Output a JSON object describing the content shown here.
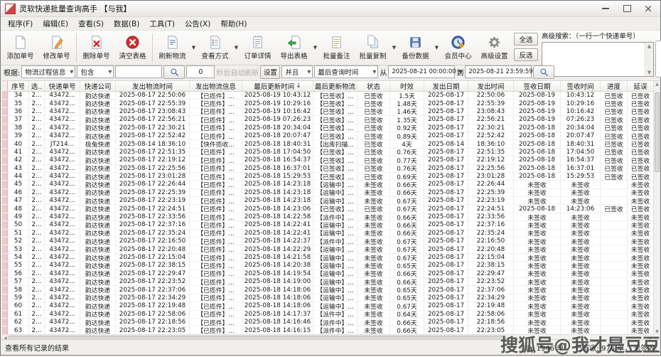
{
  "window": {
    "title": "灵软快递批量查询高手 【与我】"
  },
  "menu": {
    "items": [
      "程序(F)",
      "编辑(E)",
      "查看(S)",
      "数据(B)",
      "工具(T)",
      "公告(X)",
      "帮助(H)"
    ]
  },
  "toolbar": {
    "buttons": [
      {
        "label": "添加单号",
        "icon": "add-document-icon"
      },
      {
        "label": "修改单号",
        "icon": "edit-pencil-icon"
      },
      {
        "label": "删除单号",
        "icon": "delete-document-icon"
      },
      {
        "label": "清空表格",
        "icon": "clear-table-icon"
      },
      {
        "label": "刷新物流",
        "icon": "refresh-logistics-icon",
        "dropdown": true
      },
      {
        "label": "查看方式",
        "icon": "view-mode-icon",
        "dropdown": true
      },
      {
        "label": "订单详情",
        "icon": "order-details-icon"
      },
      {
        "label": "导出表格",
        "icon": "export-table-icon",
        "dropdown": true
      },
      {
        "label": "批量备注",
        "icon": "batch-remark-icon"
      },
      {
        "label": "批量复制",
        "icon": "batch-copy-icon",
        "dropdown": true
      },
      {
        "label": "备份数据",
        "icon": "backup-data-icon",
        "dropdown": true
      },
      {
        "label": "会员中心",
        "icon": "member-center-icon"
      },
      {
        "label": "高级设置",
        "icon": "advanced-settings-icon"
      }
    ]
  },
  "selection": {
    "select_all": "全选",
    "invert": "反选"
  },
  "advanced_search": {
    "label": "高级搜索：（一行一个快递单号）",
    "value": ""
  },
  "filter": {
    "prefix_label": "根据:",
    "field_select": "物流过程信息",
    "op_select": "包含",
    "keyword_value": "",
    "auto_refresh_value": "0",
    "auto_refresh_label": "秒后自动刷新",
    "settings_button": "设置",
    "logic_select": "并且",
    "time_field_select": "最后查询时间",
    "from_label": "从",
    "from_value": "2025-08-21 00:00:00",
    "to_label": "到",
    "to_value": "2025-08-21 23:59:59"
  },
  "table": {
    "columns": [
      "序号",
      "选..",
      "快递单号",
      "快递公司",
      "发出物流时间",
      "发出物流信息",
      "最后更新时间",
      "最后更新物流",
      "状态",
      "时效",
      "发出日期",
      "发出时间",
      "签收日期",
      "签收时间",
      "进度",
      "延误"
    ],
    "sort": {
      "column_index": 6,
      "indicator": "↓"
    },
    "rows": [
      [
        "34",
        "2...",
        "43472...",
        "韵达快递",
        "2025-08-17 22:50:06",
        "【已揽件】...",
        "2025-08-19 10:43:12",
        "【已签收】...",
        "已签收",
        "1.5天",
        "2025-08-17",
        "22:50:06",
        "2025-08-19",
        "10:43:12",
        "已签收",
        "已签收"
      ],
      [
        "35",
        "2...",
        "43472...",
        "韵达快递",
        "2025-08-17 22:55:39",
        "【已揽件】...",
        "2025-08-19 10:29:16",
        "【已签收】...",
        "已签收",
        "1.48天",
        "2025-08-17",
        "22:55:39",
        "2025-08-19",
        "10:29:16",
        "已签收",
        "已签收"
      ],
      [
        "36",
        "2...",
        "43472...",
        "韵达快递",
        "2025-08-17 23:08:43",
        "【已揽件】...",
        "2025-08-19 10:16:42",
        "【已签收】...",
        "已签收",
        "1.46天",
        "2025-08-17",
        "23:08:43",
        "2025-08-19",
        "10:16:42",
        "已签收",
        "已签收"
      ],
      [
        "37",
        "2...",
        "43472...",
        "韵达快递",
        "2025-08-17 22:56:21",
        "【已揽件】...",
        "2025-08-19 07:26:23",
        "【已签收】...",
        "已签收",
        "1.35天",
        "2025-08-17",
        "22:56:21",
        "2025-08-19",
        "07:26:23",
        "已签收",
        "已签收"
      ],
      [
        "38",
        "2...",
        "43472...",
        "韵达快递",
        "2025-08-17 22:30:21",
        "【已揽件】...",
        "2025-08-18 20:34:04",
        "【已签收】...",
        "已签收",
        "0.92天",
        "2025-08-17",
        "22:30:21",
        "2025-08-18",
        "20:34:04",
        "已签收",
        "已签收"
      ],
      [
        "39",
        "2...",
        "43472...",
        "韵达快递",
        "2025-08-17 22:52:42",
        "【已揽件】...",
        "2025-08-18 20:07:47",
        "【已签收】...",
        "已签收",
        "0.89天",
        "2025-08-17",
        "22:52:42",
        "2025-08-18",
        "20:07:47",
        "已签收",
        "已签收"
      ],
      [
        "40",
        "2...",
        "JT214...",
        "极兔快递",
        "2025-08-14 18:36:10",
        "【快件揽收...",
        "2025-08-18 18:40:31",
        "【出库扫描...",
        "已签收",
        "4天",
        "2025-08-14",
        "18:36:10",
        "2025-08-18",
        "18:40:31",
        "已签收",
        "已签收"
      ],
      [
        "41",
        "2...",
        "43472...",
        "韵达快递",
        "2025-08-17 22:51:35",
        "【已揽件】...",
        "2025-08-18 17:04:50",
        "【已签收】...",
        "已签收",
        "0.76天",
        "2025-08-17",
        "22:51:35",
        "2025-08-18",
        "17:04:50",
        "已签收",
        "已签收"
      ],
      [
        "42",
        "2...",
        "43472...",
        "韵达快递",
        "2025-08-17 22:19:12",
        "【已揽件】...",
        "2025-08-18 16:54:37",
        "【已签收】...",
        "已签收",
        "0.77天",
        "2025-08-17",
        "22:19:12",
        "2025-08-18",
        "16:54:37",
        "已签收",
        "已签收"
      ],
      [
        "43",
        "2...",
        "43472...",
        "韵达快递",
        "2025-08-17 22:25:56",
        "【已揽件】...",
        "2025-08-18 16:37:01",
        "【已签收】...",
        "已签收",
        "0.76天",
        "2025-08-17",
        "22:25:56",
        "2025-08-18",
        "16:37:01",
        "已签收",
        "已签收"
      ],
      [
        "44",
        "2...",
        "43472...",
        "韵达快递",
        "2025-08-17 23:01:28",
        "【已揽件】...",
        "2025-08-18 15:29:53",
        "【已签收】...",
        "已签收",
        "0.69天",
        "2025-08-17",
        "23:01:28",
        "2025-08-18",
        "15:29:53",
        "已签收",
        "已签收"
      ],
      [
        "45",
        "2...",
        "43472...",
        "韵达快递",
        "2025-08-17 22:26:44",
        "【已揽件】...",
        "2025-08-18 14:23:18",
        "【运输中】...",
        "未签收",
        "0.66天",
        "2025-08-17",
        "22:26:44",
        "未签收",
        "未签收",
        "",
        "未签收"
      ],
      [
        "46",
        "2...",
        "43472...",
        "韵达快递",
        "2025-08-17 22:25:39",
        "【已揽件】...",
        "2025-08-18 14:23:18",
        "【运输中】...",
        "未签收",
        "0.66天",
        "2025-08-17",
        "22:25:39",
        "未签收",
        "未签收",
        "",
        "未签收"
      ],
      [
        "47",
        "2...",
        "43472...",
        "韵达快递",
        "2025-08-17 22:23:19",
        "【已揽件】...",
        "2025-08-18 14:23:18",
        "【运输中】...",
        "未签收",
        "0.67天",
        "2025-08-17",
        "22:23:19",
        "未签收",
        "未签收",
        "",
        "未签收"
      ],
      [
        "48",
        "2...",
        "43472...",
        "韵达快递",
        "2025-08-17 22:24:51",
        "【已揽件】...",
        "2025-08-18 14:23:06",
        "【已签收】...",
        "已签收",
        "0.67天",
        "2025-08-17",
        "22:24:51",
        "2025-08-18",
        "14:23:06",
        "已签收",
        "已签收"
      ],
      [
        "49",
        "2...",
        "43472...",
        "韵达快递",
        "2025-08-17 22:33:56",
        "【已揽件】...",
        "2025-08-18 14:22:58",
        "【派件中】...",
        "未签收",
        "0.66天",
        "2025-08-17",
        "22:33:56",
        "未签收",
        "未签收",
        "",
        "未签收"
      ],
      [
        "50",
        "2...",
        "43472...",
        "韵达快递",
        "2025-08-17 22:37:16",
        "【已揽件】...",
        "2025-08-18 14:22:41",
        "【运输中】...",
        "未签收",
        "0.66天",
        "2025-08-17",
        "22:37:16",
        "未签收",
        "未签收",
        "",
        "未签收"
      ],
      [
        "51",
        "2...",
        "43472...",
        "韵达快递",
        "2025-08-17 22:35:24",
        "【已揽件】...",
        "2025-08-18 14:22:41",
        "【运输中】...",
        "未签收",
        "0.66天",
        "2025-08-17",
        "22:35:24",
        "未签收",
        "未签收",
        "",
        "未签收"
      ],
      [
        "52",
        "2...",
        "43472...",
        "韵达快递",
        "2025-08-17 22:16:50",
        "【已揽件】...",
        "2025-08-18 14:22:37",
        "【派件中】...",
        "未签收",
        "0.67天",
        "2025-08-17",
        "22:16:50",
        "未签收",
        "未签收",
        "",
        "未签收"
      ],
      [
        "53",
        "2...",
        "43472...",
        "韵达快递",
        "2025-08-17 22:20:48",
        "【已揽件】...",
        "2025-08-18 14:22:29",
        "【运输中】...",
        "未签收",
        "0.67天",
        "2025-08-17",
        "22:20:48",
        "未签收",
        "未签收",
        "",
        "未签收"
      ],
      [
        "54",
        "2...",
        "43472...",
        "韵达快递",
        "2025-08-17 22:15:04",
        "【已揽件】...",
        "2025-08-18 14:21:58",
        "【运输中】...",
        "未签收",
        "0.67天",
        "2025-08-17",
        "22:15:04",
        "未签收",
        "未签收",
        "",
        "未签收"
      ],
      [
        "55",
        "2...",
        "43472...",
        "韵达快递",
        "2025-08-17 22:38:15",
        "【已揽件】...",
        "2025-08-18 14:20:38",
        "【运输中】...",
        "未签收",
        "0.65天",
        "2025-08-17",
        "22:38:15",
        "未签收",
        "未签收",
        "",
        "未签收"
      ],
      [
        "56",
        "2...",
        "43472...",
        "韵达快递",
        "2025-08-17 22:29:47",
        "【已揽件】...",
        "2025-08-18 14:19:54",
        "【运输中】...",
        "未签收",
        "0.66天",
        "2025-08-17",
        "22:29:47",
        "未签收",
        "未签收",
        "",
        "未签收"
      ],
      [
        "57",
        "2...",
        "43472...",
        "韵达快递",
        "2025-08-17 22:23:52",
        "【已揽件】...",
        "2025-08-18 14:19:00",
        "【运输中】...",
        "未签收",
        "0.66天",
        "2025-08-17",
        "22:23:52",
        "未签收",
        "未签收",
        "",
        "未签收"
      ],
      [
        "58",
        "2...",
        "43472...",
        "韵达快递",
        "2025-08-17 22:37:06",
        "【已揽件】...",
        "2025-08-18 14:18:06",
        "【运输中】...",
        "未签收",
        "0.65天",
        "2025-08-17",
        "22:37:06",
        "未签收",
        "未签收",
        "",
        "未签收"
      ],
      [
        "59",
        "2...",
        "43472...",
        "韵达快递",
        "2025-08-17 22:34:29",
        "【已揽件】...",
        "2025-08-18 14:18:06",
        "【运输中】...",
        "未签收",
        "0.65天",
        "2025-08-17",
        "22:34:29",
        "未签收",
        "未签收",
        "",
        "未签收"
      ],
      [
        "60",
        "2...",
        "43472...",
        "韵达快递",
        "2025-08-17 22:19:48",
        "【已揽件】...",
        "2025-08-18 14:18:06",
        "【运输中】...",
        "未签收",
        "0.67天",
        "2025-08-17",
        "22:19:48",
        "未签收",
        "未签收",
        "",
        "未签收"
      ],
      [
        "61",
        "2...",
        "43472...",
        "韵达快递",
        "2025-08-17 22:58:06",
        "【已揽件】...",
        "2025-08-18 14:17:37",
        "【派件中】...",
        "未签收",
        "0.64天",
        "2025-08-17",
        "22:58:06",
        "未签收",
        "未签收",
        "",
        "未签收"
      ],
      [
        "62",
        "2...",
        "43472...",
        "韵达快递",
        "2025-08-17 22:18:56",
        "【已揽件】...",
        "2025-08-18 14:16:46",
        "【派件中】...",
        "未签收",
        "0.66天",
        "2025-08-17",
        "22:18:56",
        "未签收",
        "未签收",
        "",
        "未签收"
      ],
      [
        "63",
        "2...",
        "43472...",
        "韵达快递",
        "2025-08-17 22:23:05",
        "【已揽件】...",
        "2025-08-18 14:16:15",
        "【派件中】...",
        "未签收",
        "0.66天",
        "2025-08-17",
        "22:23:05",
        "未签收",
        "未签收",
        "",
        "未签收"
      ]
    ]
  },
  "status_bar": {
    "left": "查看所有记录的结果",
    "right": "共: 1946 单 ， 已签收:  976 单， 未签收:  779 单， 无信息: 147 单 ， 退回件: 44 单，  0.5天未更新: 406单，1天未更新: 6"
  },
  "watermark": "搜狐号@我才是豆豆",
  "colors": {
    "row_marker": "#f2c9c9",
    "danger": "#d22f2f",
    "success": "#3fa043",
    "brand_blue": "#3a66a8"
  }
}
